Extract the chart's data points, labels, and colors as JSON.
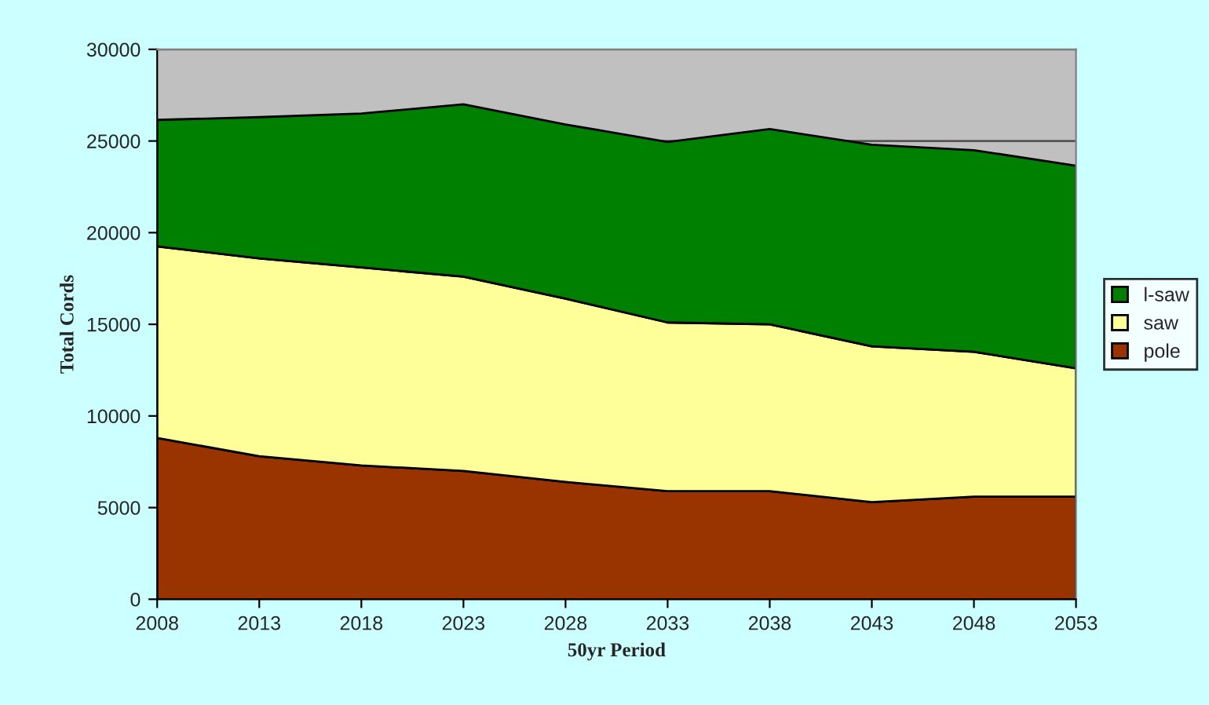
{
  "chart_data": {
    "type": "area",
    "stacked": true,
    "xlabel": "50yr Period",
    "ylabel": "Total Cords",
    "categories": [
      "2008",
      "2013",
      "2018",
      "2023",
      "2028",
      "2033",
      "2038",
      "2043",
      "2048",
      "2053"
    ],
    "series": [
      {
        "name": "pole",
        "color": "#993300",
        "values": [
          8800,
          7800,
          7300,
          7000,
          6400,
          5900,
          5900,
          5300,
          5600,
          5600
        ]
      },
      {
        "name": "saw",
        "color": "#ffff99",
        "values": [
          10450,
          10800,
          10800,
          10600,
          10000,
          9200,
          9100,
          8500,
          7900,
          7000
        ]
      },
      {
        "name": "l-saw",
        "color": "#008000",
        "values": [
          6900,
          7700,
          8400,
          9400,
          9500,
          9850,
          10650,
          11000,
          11000,
          11050
        ]
      }
    ],
    "ylim": [
      0,
      30000
    ],
    "yticks": [
      0,
      5000,
      10000,
      15000,
      20000,
      25000,
      30000
    ],
    "grid": "y",
    "legend": "right"
  }
}
